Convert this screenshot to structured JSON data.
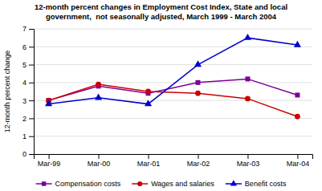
{
  "chart_data": {
    "type": "line",
    "title": "12-month percent changes in Employment Cost Index, State and local",
    "subtitle": "government,  not seasonally adjusted, March 1999 - March 2004",
    "y_label": "12-month percent change",
    "categories": [
      "Mar-99",
      "Mar-00",
      "Mar-01",
      "Mar-02",
      "Mar-03",
      "Mar-04"
    ],
    "series": [
      {
        "name": "Compensation costs",
        "color": "#7B0099",
        "marker": "square",
        "values": [
          3.0,
          3.8,
          3.4,
          4.0,
          4.2,
          3.3
        ]
      },
      {
        "name": "Wages and salaries",
        "color": "#CC0000",
        "marker": "circle",
        "values": [
          3.0,
          3.9,
          3.5,
          3.4,
          3.1,
          2.1
        ]
      },
      {
        "name": "Benefit costs",
        "color": "#0000CC",
        "marker": "triangle",
        "values": [
          2.8,
          3.15,
          2.8,
          5.0,
          6.5,
          6.1
        ]
      }
    ],
    "ylim": [
      0,
      7
    ],
    "yticks": [
      0,
      1,
      2,
      3,
      4,
      5,
      6,
      7
    ],
    "grid": true,
    "legend": "bottom"
  }
}
